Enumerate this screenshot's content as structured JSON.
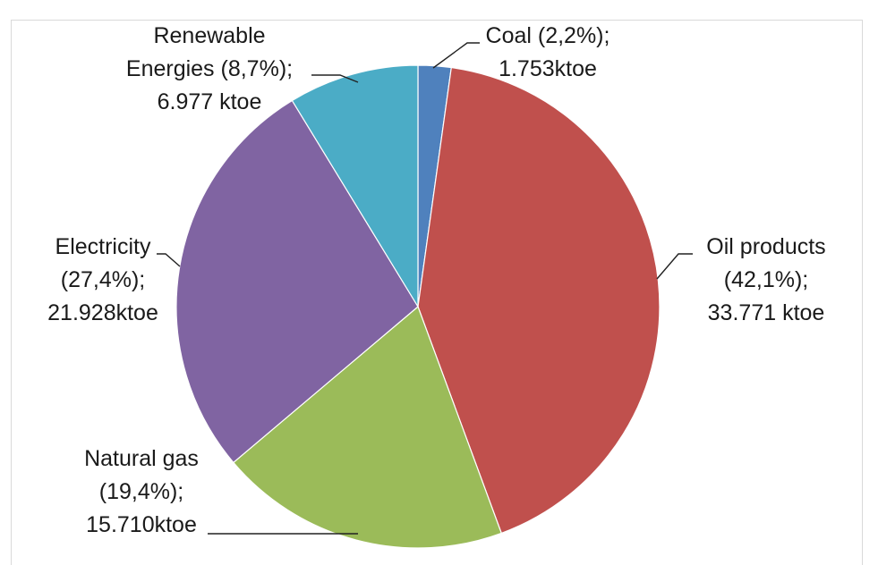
{
  "chart_data": {
    "type": "pie",
    "title": "",
    "slices": [
      {
        "name": "Coal",
        "percent": 2.2,
        "value": 1753,
        "unit": "ktoe",
        "color": "#4F81BD",
        "label_lines": [
          "Coal (2,2%);",
          "1.753ktoe"
        ]
      },
      {
        "name": "Oil products",
        "percent": 42.1,
        "value": 33771,
        "unit": "ktoe",
        "color": "#C0504D",
        "label_lines": [
          "Oil products",
          "(42,1%);",
          "33.771 ktoe"
        ]
      },
      {
        "name": "Natural gas",
        "percent": 19.4,
        "value": 15710,
        "unit": "ktoe",
        "color": "#9BBB59",
        "label_lines": [
          "Natural gas",
          "(19,4%);",
          "15.710ktoe"
        ]
      },
      {
        "name": "Electricity",
        "percent": 27.4,
        "value": 21928,
        "unit": "ktoe",
        "color": "#8064A2",
        "label_lines": [
          "Electricity",
          "(27,4%);",
          "21.928ktoe"
        ]
      },
      {
        "name": "Renewable Energies",
        "percent": 8.7,
        "value": 6977,
        "unit": "ktoe",
        "color": "#4BACC6",
        "label_lines": [
          "Renewable",
          "Energies (8,7%);",
          "6.977 ktoe"
        ]
      }
    ],
    "start_angle": "12 o'clock",
    "direction": "clockwise",
    "legend": "none"
  }
}
